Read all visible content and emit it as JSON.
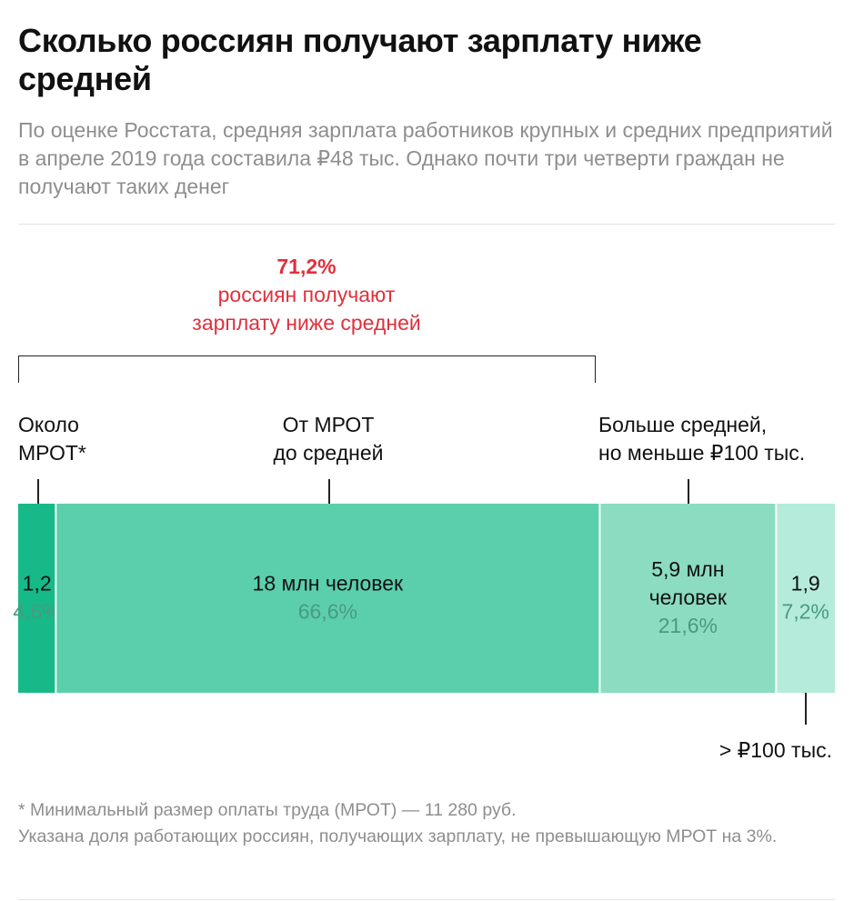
{
  "title": "Сколько россиян получают зарплату ниже средней",
  "subtitle": "По оценке Росстата, средняя зарплата работников крупных и средних предприятий в апреле 2019 года составила ₽48 тыс. Однако почти три четверти граждан не получают таких денег",
  "highlight": {
    "value": "71,2%",
    "line1": "россиян получают",
    "line2": "зарплату ниже средней"
  },
  "footnote": {
    "line1": "* Минимальный размер оплаты труда (МРОТ) — 11 280 руб.",
    "line2": "Указана доля работающих россиян, получающих зарплату, не превышающую МРОТ на 3%."
  },
  "colors": {
    "highlight": "#e0303c",
    "segment_1": "#17b988",
    "segment_2": "#5bcfab",
    "segment_3": "#8bdcc1",
    "segment_4": "#b5ebda"
  },
  "chart_data": {
    "type": "bar",
    "stacked": true,
    "orientation": "horizontal",
    "total_percent": 100,
    "segments": [
      {
        "category_line1": "Около",
        "category_line2": "МРОТ*",
        "value": 1.2,
        "value_label": "1,2",
        "value_label2": "",
        "percent": 4.6,
        "percent_label": "4,6%",
        "color": "#17b988"
      },
      {
        "category_line1": "От МРОТ",
        "category_line2": "до средней",
        "value": 18,
        "value_label": "18 млн человек",
        "value_label2": "",
        "percent": 66.6,
        "percent_label": "66,6%",
        "color": "#5bcfab"
      },
      {
        "category_line1": "Больше средней,",
        "category_line2": "но меньше ₽100 тыс.",
        "value": 5.9,
        "value_label": "5,9 млн",
        "value_label2": "человек",
        "percent": 21.6,
        "percent_label": "21,6%",
        "color": "#8bdcc1"
      },
      {
        "category_line1": "> ₽100 тыс.",
        "category_line2": "",
        "value": 1.9,
        "value_label": "1,9",
        "value_label2": "",
        "percent": 7.2,
        "percent_label": "7,2%",
        "color": "#b5ebda"
      }
    ]
  }
}
